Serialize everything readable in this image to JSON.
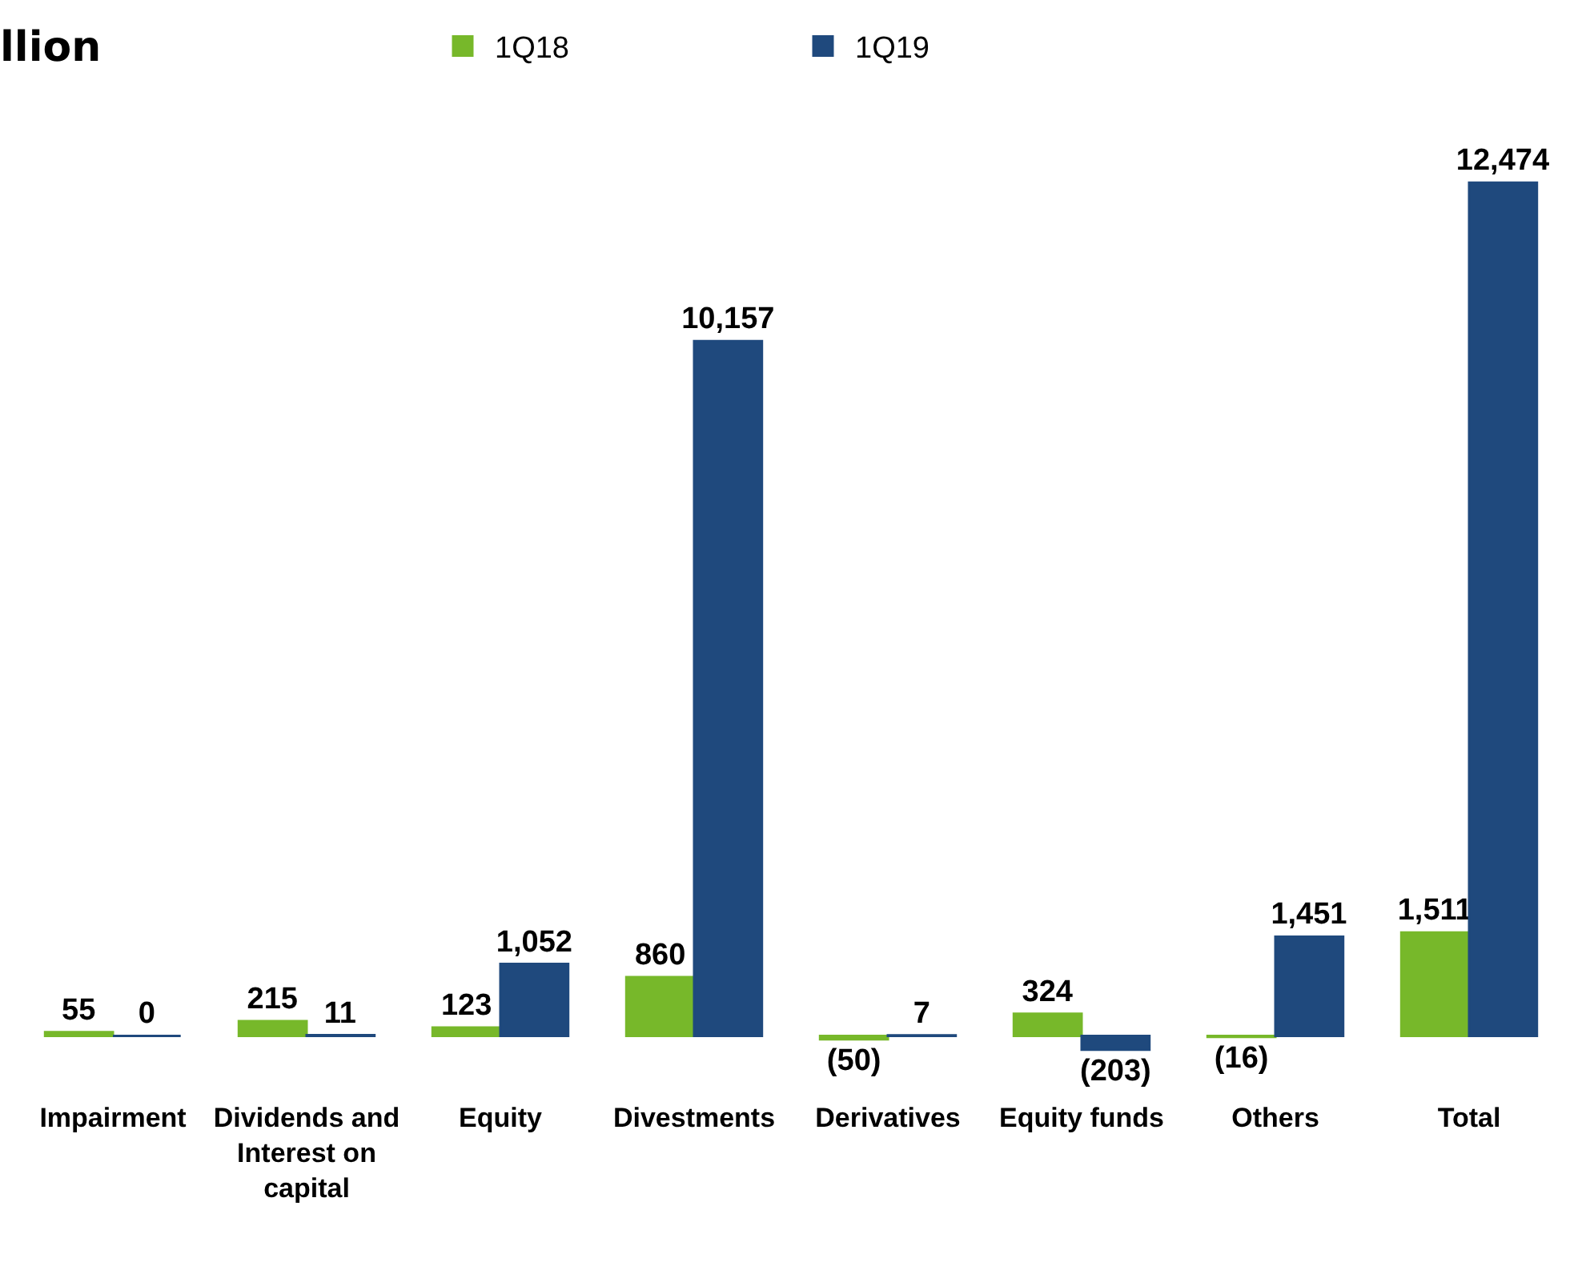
{
  "chart_data": {
    "type": "bar",
    "title": "llion",
    "categories": [
      "Impairment",
      "Dividends and Interest on capital",
      "Equity",
      "Divestments",
      "Derivatives",
      "Equity funds",
      "Others",
      "Total"
    ],
    "series": [
      {
        "name": "1Q18",
        "color": "#77b82a",
        "values": [
          55,
          215,
          123,
          860,
          -50,
          324,
          -16,
          1511
        ],
        "value_labels": [
          "55",
          "215",
          "123",
          "860",
          "(50)",
          "324",
          "(16)",
          "1,511"
        ]
      },
      {
        "name": "1Q19",
        "color": "#1f497d",
        "values": [
          0,
          11,
          1052,
          10157,
          7,
          -203,
          1451,
          12474
        ],
        "value_labels": [
          "0",
          "11",
          "1,052",
          "10,157",
          "7",
          "(203)",
          "1,451",
          "12,474"
        ]
      }
    ],
    "legend": "top"
  }
}
